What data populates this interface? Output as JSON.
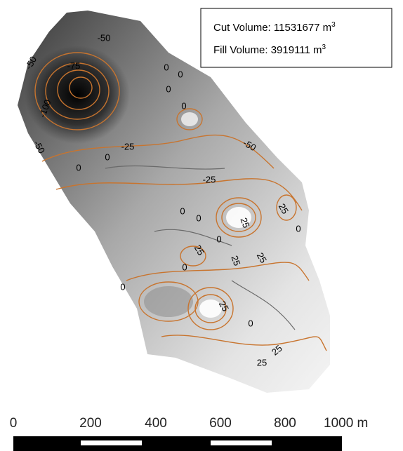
{
  "legend": {
    "cut_label": "Cut Volume: 11531677 m",
    "cut_exponent": "3",
    "fill_label": "Fill Volume: 3919111 m",
    "fill_exponent": "3"
  },
  "contour_labels": [
    "-50",
    "-50",
    "-75",
    "-100",
    "-50",
    "0",
    "0",
    "0",
    "0",
    "-25",
    "0",
    "0",
    "-50",
    "-25",
    "0",
    "0",
    "25",
    "25",
    "0",
    "0",
    "25",
    "0",
    "25",
    "25",
    "0",
    "25",
    "0",
    "25",
    "25"
  ],
  "scale_bar": {
    "labels": [
      "0",
      "200",
      "400",
      "600",
      "800",
      "1000 m"
    ]
  }
}
